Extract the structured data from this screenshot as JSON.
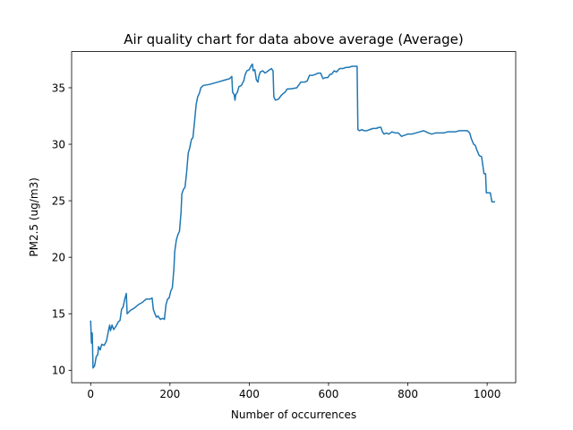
{
  "chart_data": {
    "type": "line",
    "title": "Air quality chart for data above average (Average)",
    "xlabel": "Number of occurrences",
    "ylabel": "PM2.5 (ug/m3)",
    "xlim": [
      -48,
      1072
    ],
    "ylim": [
      8.9,
      38.2
    ],
    "xticks": [
      0,
      200,
      400,
      600,
      800,
      1000
    ],
    "yticks": [
      10,
      15,
      20,
      25,
      30,
      35
    ],
    "grid": false,
    "legend": "none",
    "series": [
      {
        "color": "#1f77b4",
        "points": [
          [
            0,
            14.4
          ],
          [
            2,
            12.4
          ],
          [
            4,
            13.3
          ],
          [
            6,
            10.2
          ],
          [
            10,
            10.4
          ],
          [
            14,
            11.2
          ],
          [
            18,
            11.4
          ],
          [
            20,
            12.1
          ],
          [
            24,
            11.8
          ],
          [
            28,
            12.3
          ],
          [
            34,
            12.2
          ],
          [
            40,
            12.6
          ],
          [
            46,
            13.7
          ],
          [
            48,
            14.0
          ],
          [
            50,
            13.5
          ],
          [
            54,
            14.0
          ],
          [
            58,
            13.6
          ],
          [
            64,
            13.9
          ],
          [
            70,
            14.3
          ],
          [
            74,
            14.4
          ],
          [
            78,
            15.4
          ],
          [
            82,
            15.6
          ],
          [
            86,
            16.3
          ],
          [
            90,
            16.8
          ],
          [
            92,
            15.0
          ],
          [
            100,
            15.3
          ],
          [
            110,
            15.5
          ],
          [
            120,
            15.8
          ],
          [
            130,
            16.0
          ],
          [
            140,
            16.3
          ],
          [
            150,
            16.3
          ],
          [
            155,
            16.4
          ],
          [
            158,
            15.4
          ],
          [
            162,
            15.0
          ],
          [
            166,
            14.7
          ],
          [
            170,
            14.8
          ],
          [
            176,
            14.5
          ],
          [
            182,
            14.6
          ],
          [
            186,
            14.5
          ],
          [
            190,
            15.8
          ],
          [
            194,
            16.3
          ],
          [
            198,
            16.4
          ],
          [
            202,
            17.0
          ],
          [
            206,
            17.3
          ],
          [
            210,
            19.0
          ],
          [
            212,
            20.5
          ],
          [
            216,
            21.5
          ],
          [
            220,
            22.0
          ],
          [
            224,
            22.3
          ],
          [
            228,
            24.0
          ],
          [
            230,
            25.6
          ],
          [
            234,
            26.0
          ],
          [
            238,
            26.2
          ],
          [
            242,
            27.5
          ],
          [
            246,
            29.2
          ],
          [
            250,
            29.7
          ],
          [
            254,
            30.4
          ],
          [
            258,
            30.6
          ],
          [
            262,
            32.0
          ],
          [
            266,
            33.5
          ],
          [
            270,
            34.2
          ],
          [
            274,
            34.5
          ],
          [
            278,
            35.0
          ],
          [
            284,
            35.2
          ],
          [
            300,
            35.3
          ],
          [
            320,
            35.5
          ],
          [
            340,
            35.7
          ],
          [
            350,
            35.8
          ],
          [
            356,
            36.0
          ],
          [
            358,
            34.6
          ],
          [
            362,
            34.4
          ],
          [
            364,
            33.9
          ],
          [
            366,
            34.4
          ],
          [
            370,
            34.6
          ],
          [
            374,
            35.1
          ],
          [
            380,
            35.2
          ],
          [
            386,
            35.6
          ],
          [
            390,
            36.2
          ],
          [
            394,
            36.5
          ],
          [
            400,
            36.6
          ],
          [
            404,
            36.9
          ],
          [
            408,
            37.1
          ],
          [
            410,
            36.5
          ],
          [
            414,
            36.6
          ],
          [
            418,
            35.7
          ],
          [
            422,
            35.5
          ],
          [
            424,
            36.0
          ],
          [
            428,
            36.4
          ],
          [
            434,
            36.5
          ],
          [
            440,
            36.3
          ],
          [
            448,
            36.5
          ],
          [
            456,
            36.7
          ],
          [
            460,
            36.5
          ],
          [
            462,
            34.2
          ],
          [
            466,
            33.9
          ],
          [
            474,
            34.0
          ],
          [
            480,
            34.3
          ],
          [
            486,
            34.5
          ],
          [
            490,
            34.6
          ],
          [
            496,
            34.9
          ],
          [
            504,
            34.9
          ],
          [
            520,
            35.0
          ],
          [
            530,
            35.5
          ],
          [
            540,
            35.5
          ],
          [
            546,
            35.6
          ],
          [
            552,
            36.1
          ],
          [
            560,
            36.1
          ],
          [
            568,
            36.2
          ],
          [
            574,
            36.3
          ],
          [
            580,
            36.3
          ],
          [
            586,
            35.8
          ],
          [
            592,
            35.9
          ],
          [
            598,
            35.9
          ],
          [
            604,
            36.2
          ],
          [
            608,
            36.2
          ],
          [
            614,
            36.5
          ],
          [
            620,
            36.4
          ],
          [
            628,
            36.7
          ],
          [
            636,
            36.7
          ],
          [
            644,
            36.8
          ],
          [
            650,
            36.8
          ],
          [
            660,
            36.9
          ],
          [
            672,
            36.9
          ],
          [
            674,
            31.3
          ],
          [
            678,
            31.2
          ],
          [
            684,
            31.3
          ],
          [
            690,
            31.2
          ],
          [
            696,
            31.2
          ],
          [
            704,
            31.3
          ],
          [
            712,
            31.4
          ],
          [
            720,
            31.4
          ],
          [
            728,
            31.5
          ],
          [
            732,
            31.5
          ],
          [
            736,
            31.1
          ],
          [
            740,
            30.9
          ],
          [
            746,
            31.0
          ],
          [
            752,
            30.9
          ],
          [
            760,
            31.1
          ],
          [
            768,
            31.0
          ],
          [
            776,
            31.0
          ],
          [
            784,
            30.7
          ],
          [
            792,
            30.8
          ],
          [
            800,
            30.9
          ],
          [
            810,
            30.9
          ],
          [
            820,
            31.0
          ],
          [
            830,
            31.1
          ],
          [
            840,
            31.2
          ],
          [
            846,
            31.1
          ],
          [
            852,
            31.0
          ],
          [
            860,
            30.9
          ],
          [
            870,
            31.0
          ],
          [
            880,
            31.0
          ],
          [
            890,
            31.0
          ],
          [
            900,
            31.1
          ],
          [
            910,
            31.1
          ],
          [
            920,
            31.1
          ],
          [
            930,
            31.2
          ],
          [
            940,
            31.2
          ],
          [
            950,
            31.2
          ],
          [
            956,
            31.0
          ],
          [
            960,
            30.5
          ],
          [
            966,
            30.0
          ],
          [
            970,
            29.9
          ],
          [
            974,
            29.5
          ],
          [
            980,
            29.0
          ],
          [
            986,
            28.9
          ],
          [
            992,
            27.4
          ],
          [
            996,
            27.4
          ],
          [
            998,
            25.7
          ],
          [
            1002,
            25.7
          ],
          [
            1008,
            25.7
          ],
          [
            1012,
            24.9
          ],
          [
            1020,
            24.9
          ]
        ]
      }
    ]
  }
}
